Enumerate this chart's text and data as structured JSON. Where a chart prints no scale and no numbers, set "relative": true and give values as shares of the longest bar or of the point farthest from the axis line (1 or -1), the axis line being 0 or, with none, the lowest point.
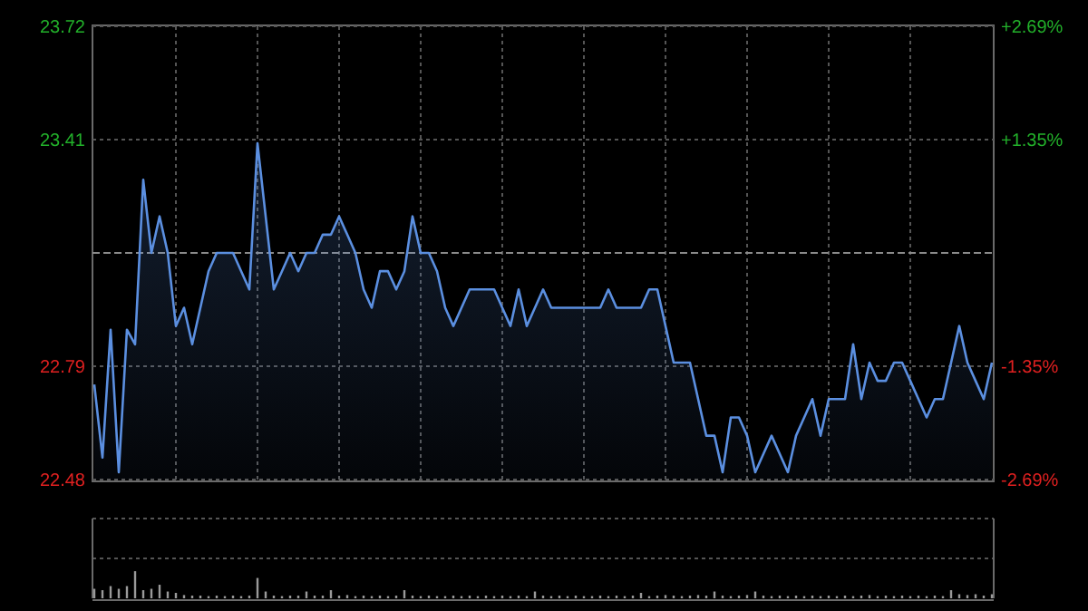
{
  "chart_data": [
    {
      "type": "area",
      "categories": [
        null,
        null,
        null,
        null,
        null,
        null,
        null,
        null,
        null,
        null,
        null,
        null,
        null,
        null,
        null,
        null,
        null,
        null,
        null,
        null,
        null,
        null,
        null,
        null,
        null,
        null,
        null,
        null,
        null,
        null,
        null,
        null,
        null,
        null,
        null,
        null,
        null,
        null,
        null,
        null,
        null,
        null,
        null,
        null,
        null,
        null,
        null,
        null,
        null,
        null,
        null,
        null,
        null,
        null,
        null,
        null,
        null,
        null,
        null,
        null,
        null,
        null,
        null,
        null,
        null,
        null,
        null,
        null,
        null,
        null,
        null,
        null,
        null,
        null,
        null,
        null,
        null,
        null,
        null,
        null,
        null,
        null,
        null,
        null,
        null,
        null,
        null,
        null,
        null,
        null,
        null,
        null,
        null,
        null,
        null,
        null,
        null,
        null,
        null,
        null,
        null,
        null,
        null,
        null,
        null,
        null,
        null,
        null,
        null,
        null,
        null
      ],
      "series": [
        {
          "color": "#5b8fe0",
          "values": [
            22.74,
            22.54,
            22.89,
            22.5,
            22.89,
            22.85,
            23.3,
            23.1,
            23.2,
            23.1,
            22.9,
            22.95,
            22.85,
            22.95,
            23.05,
            23.1,
            23.1,
            23.1,
            23.05,
            23.0,
            23.4,
            23.2,
            23.0,
            23.05,
            23.1,
            23.05,
            23.1,
            23.1,
            23.15,
            23.15,
            23.2,
            23.15,
            23.1,
            23.0,
            22.95,
            23.05,
            23.05,
            23.0,
            23.05,
            23.2,
            23.1,
            23.1,
            23.05,
            22.95,
            22.9,
            22.95,
            23.0,
            23.0,
            23.0,
            23.0,
            22.95,
            22.9,
            23.0,
            22.9,
            22.95,
            23.0,
            22.95,
            22.95,
            22.95,
            22.95,
            22.95,
            22.95,
            22.95,
            23.0,
            22.95,
            22.95,
            22.95,
            22.95,
            23.0,
            23.0,
            22.9,
            22.8,
            22.8,
            22.8,
            22.7,
            22.6,
            22.6,
            22.5,
            22.65,
            22.65,
            22.6,
            22.5,
            22.55,
            22.6,
            22.55,
            22.5,
            22.6,
            22.65,
            22.7,
            22.6,
            22.7,
            22.7,
            22.7,
            22.85,
            22.7,
            22.8,
            22.75,
            22.75,
            22.8,
            22.8,
            22.75,
            22.7,
            22.65,
            22.7,
            22.7,
            22.8,
            22.9,
            22.8,
            22.75,
            22.7,
            22.8
          ]
        }
      ],
      "ylim": [
        22.48,
        23.72
      ],
      "yticks": [
        23.72,
        23.41,
        22.79,
        22.48
      ],
      "y2lim": [
        -2.69,
        2.69
      ],
      "y2ticks": [
        {
          "value": 2.69,
          "label": "+2.69%"
        },
        {
          "value": 1.35,
          "label": "+1.35%"
        },
        {
          "value": -1.35,
          "label": "-1.35%"
        },
        {
          "value": -2.69,
          "label": "-2.69%"
        }
      ],
      "ref_lines": [
        {
          "axis": "y",
          "value": 23.1,
          "color": "#8a8a8a",
          "line_style": "dashed"
        }
      ],
      "grid": true
    },
    {
      "type": "bar",
      "relative": true,
      "color": "#9a9a9a",
      "categories": [
        null,
        null,
        null,
        null,
        null,
        null,
        null,
        null,
        null,
        null,
        null,
        null,
        null,
        null,
        null,
        null,
        null,
        null,
        null,
        null,
        null,
        null,
        null,
        null,
        null,
        null,
        null,
        null,
        null,
        null,
        null,
        null,
        null,
        null,
        null,
        null,
        null,
        null,
        null,
        null,
        null,
        null,
        null,
        null,
        null,
        null,
        null,
        null,
        null,
        null,
        null,
        null,
        null,
        null,
        null,
        null,
        null,
        null,
        null,
        null,
        null,
        null,
        null,
        null,
        null,
        null,
        null,
        null,
        null,
        null,
        null,
        null,
        null,
        null,
        null,
        null,
        null,
        null,
        null,
        null,
        null,
        null,
        null,
        null,
        null,
        null,
        null,
        null,
        null,
        null,
        null,
        null,
        null,
        null,
        null,
        null,
        null,
        null,
        null,
        null,
        null,
        null,
        null,
        null,
        null,
        null,
        null,
        null,
        null,
        null,
        null
      ],
      "values": [
        0.35,
        0.3,
        0.45,
        0.35,
        0.45,
        1.0,
        0.3,
        0.35,
        0.5,
        0.25,
        0.2,
        0.12,
        0.1,
        0.1,
        0.08,
        0.1,
        0.08,
        0.1,
        0.08,
        0.1,
        0.75,
        0.25,
        0.1,
        0.08,
        0.1,
        0.1,
        0.25,
        0.1,
        0.1,
        0.3,
        0.1,
        0.12,
        0.08,
        0.1,
        0.08,
        0.1,
        0.08,
        0.1,
        0.3,
        0.1,
        0.08,
        0.1,
        0.08,
        0.08,
        0.1,
        0.08,
        0.1,
        0.08,
        0.1,
        0.08,
        0.1,
        0.08,
        0.1,
        0.08,
        0.25,
        0.1,
        0.08,
        0.1,
        0.08,
        0.1,
        0.08,
        0.08,
        0.1,
        0.08,
        0.1,
        0.08,
        0.1,
        0.2,
        0.08,
        0.1,
        0.12,
        0.1,
        0.08,
        0.1,
        0.12,
        0.1,
        0.25,
        0.1,
        0.08,
        0.1,
        0.12,
        0.25,
        0.1,
        0.08,
        0.1,
        0.08,
        0.1,
        0.08,
        0.1,
        0.08,
        0.1,
        0.08,
        0.1,
        0.08,
        0.1,
        0.12,
        0.08,
        0.1,
        0.08,
        0.1,
        0.08,
        0.1,
        0.08,
        0.1,
        0.08,
        0.3,
        0.15,
        0.12,
        0.15,
        0.1,
        0.15
      ]
    }
  ]
}
